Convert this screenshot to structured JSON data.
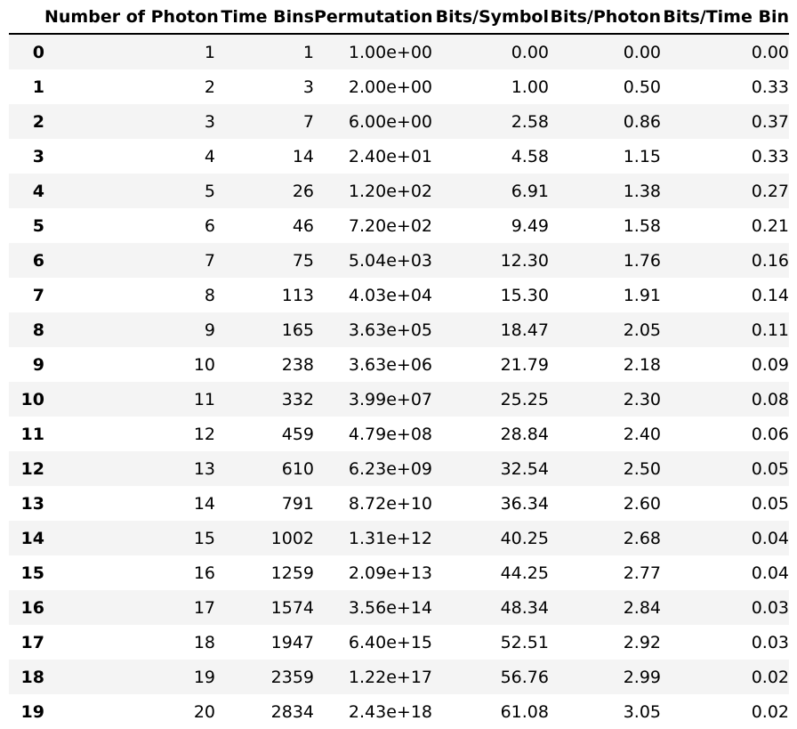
{
  "table": {
    "columns": [
      "",
      "Number of Photon",
      "Time Bins",
      "Permutation",
      "Bits/Symbol",
      "Bits/Photon",
      "Bits/Time Bin"
    ],
    "rows": [
      [
        "0",
        "1",
        "1",
        "1.00e+00",
        "0.00",
        "0.00",
        "0.00"
      ],
      [
        "1",
        "2",
        "3",
        "2.00e+00",
        "1.00",
        "0.50",
        "0.33"
      ],
      [
        "2",
        "3",
        "7",
        "6.00e+00",
        "2.58",
        "0.86",
        "0.37"
      ],
      [
        "3",
        "4",
        "14",
        "2.40e+01",
        "4.58",
        "1.15",
        "0.33"
      ],
      [
        "4",
        "5",
        "26",
        "1.20e+02",
        "6.91",
        "1.38",
        "0.27"
      ],
      [
        "5",
        "6",
        "46",
        "7.20e+02",
        "9.49",
        "1.58",
        "0.21"
      ],
      [
        "6",
        "7",
        "75",
        "5.04e+03",
        "12.30",
        "1.76",
        "0.16"
      ],
      [
        "7",
        "8",
        "113",
        "4.03e+04",
        "15.30",
        "1.91",
        "0.14"
      ],
      [
        "8",
        "9",
        "165",
        "3.63e+05",
        "18.47",
        "2.05",
        "0.11"
      ],
      [
        "9",
        "10",
        "238",
        "3.63e+06",
        "21.79",
        "2.18",
        "0.09"
      ],
      [
        "10",
        "11",
        "332",
        "3.99e+07",
        "25.25",
        "2.30",
        "0.08"
      ],
      [
        "11",
        "12",
        "459",
        "4.79e+08",
        "28.84",
        "2.40",
        "0.06"
      ],
      [
        "12",
        "13",
        "610",
        "6.23e+09",
        "32.54",
        "2.50",
        "0.05"
      ],
      [
        "13",
        "14",
        "791",
        "8.72e+10",
        "36.34",
        "2.60",
        "0.05"
      ],
      [
        "14",
        "15",
        "1002",
        "1.31e+12",
        "40.25",
        "2.68",
        "0.04"
      ],
      [
        "15",
        "16",
        "1259",
        "2.09e+13",
        "44.25",
        "2.77",
        "0.04"
      ],
      [
        "16",
        "17",
        "1574",
        "3.56e+14",
        "48.34",
        "2.84",
        "0.03"
      ],
      [
        "17",
        "18",
        "1947",
        "6.40e+15",
        "52.51",
        "2.92",
        "0.03"
      ],
      [
        "18",
        "19",
        "2359",
        "1.22e+17",
        "56.76",
        "2.99",
        "0.02"
      ],
      [
        "19",
        "20",
        "2834",
        "2.43e+18",
        "61.08",
        "3.05",
        "0.02"
      ]
    ],
    "stripe_color": "#f4f4f4",
    "header_rule_color": "#000000"
  }
}
